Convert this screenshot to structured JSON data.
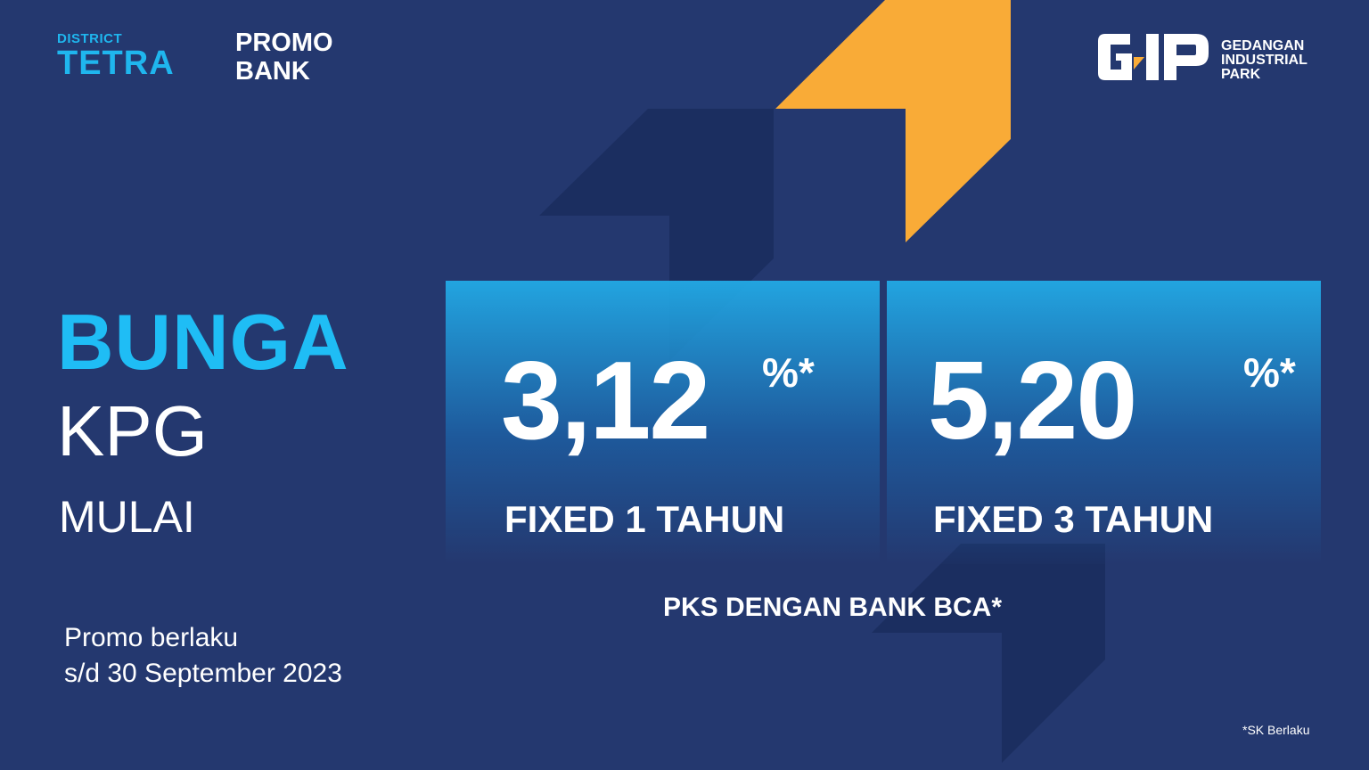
{
  "brand": {
    "district_small": "DISTRICT",
    "district_big": "TETRA",
    "promo_line1": "PROMO",
    "promo_line2": "BANK",
    "gip_line1": "GEDANGAN",
    "gip_line2": "INDUSTRIAL",
    "gip_line3": "PARK",
    "gip_logo_text": "GIP"
  },
  "headline": {
    "line1": "BUNGA",
    "line2": "KPG",
    "line3": "MULAI"
  },
  "offers": [
    {
      "rate": "3,12",
      "unit": "%*",
      "term": "FIXED 1 TAHUN"
    },
    {
      "rate": "5,20",
      "unit": "%*",
      "term": "FIXED 3 TAHUN"
    }
  ],
  "partner": "PKS DENGAN BANK BCA*",
  "validity": {
    "line1": "Promo berlaku",
    "line2": "s/d 30 September 2023"
  },
  "footnote": "*SK Berlaku",
  "colors": {
    "background": "#24386f",
    "accent_blue": "#1fbdf5",
    "accent_orange": "#f9ab37",
    "dark_shape": "#1a2d5e"
  }
}
